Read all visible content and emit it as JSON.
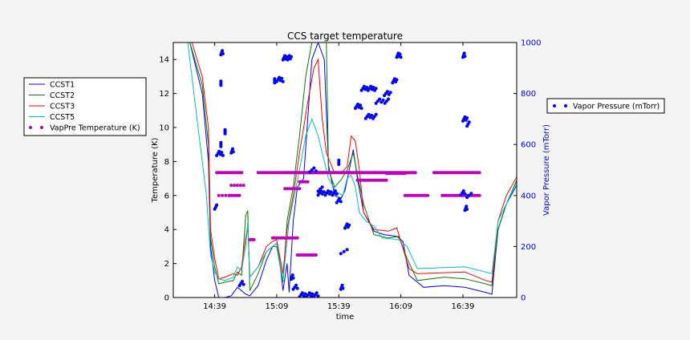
{
  "chart_data": {
    "type": "line",
    "title": "CCS target temperature",
    "xlabel": "time",
    "ylabel": "Temperature (K)",
    "y2label": "Vapor Pressure (mTorr)",
    "xlim": [
      "14:19",
      "17:05"
    ],
    "ylim": [
      0,
      15
    ],
    "y2lim": [
      0,
      1000
    ],
    "x_ticks": [
      "14:39",
      "15:09",
      "15:39",
      "16:09",
      "16:39"
    ],
    "y_ticks": [
      "0",
      "2",
      "4",
      "6",
      "8",
      "10",
      "12",
      "14"
    ],
    "y2_ticks": [
      "0",
      "200",
      "400",
      "600",
      "800",
      "1000"
    ],
    "grid": false,
    "legend_left_placement": "outside-left",
    "legend_right_placement": "outside-right",
    "colors": {
      "CCST1": "#0000ff",
      "CCST2": "#008000",
      "CCST3": "#ff0000",
      "CCST5": "#00bfbf",
      "VapPre Temperature (K)": "#bf00bf",
      "Vapor Pressure (mTorr)": "#0000ff",
      "right_axis": "#0000ff"
    },
    "series": [
      {
        "name": "CCST1",
        "axis": "left",
        "style": "line",
        "points": [
          [
            "14:19",
            15
          ],
          [
            "14:27",
            15
          ],
          [
            "14:33",
            12
          ],
          [
            "14:36",
            8
          ],
          [
            "14:37",
            3
          ],
          [
            "14:39",
            1
          ],
          [
            "14:41",
            0
          ],
          [
            "14:44",
            0
          ],
          [
            "14:47",
            0.1
          ],
          [
            "14:50",
            0.6
          ],
          [
            "14:52",
            0.4
          ],
          [
            "14:54",
            0.2
          ],
          [
            "14:56",
            0.1
          ],
          [
            "15:00",
            0.7
          ],
          [
            "15:04",
            2.2
          ],
          [
            "15:07",
            3.0
          ],
          [
            "15:09",
            3.2
          ],
          [
            "15:10",
            2.7
          ],
          [
            "15:12",
            0.4
          ],
          [
            "15:14",
            2.0
          ],
          [
            "15:15",
            0.3
          ],
          [
            "15:17",
            4.5
          ],
          [
            "15:19",
            6.5
          ],
          [
            "15:22",
            7.0
          ],
          [
            "15:26",
            14
          ],
          [
            "15:29",
            15
          ],
          [
            "15:32",
            14
          ],
          [
            "15:34",
            7.8
          ],
          [
            "15:37",
            6.0
          ],
          [
            "15:40",
            5.8
          ],
          [
            "15:42",
            6.3
          ],
          [
            "15:44",
            7.5
          ],
          [
            "15:46",
            8.7
          ],
          [
            "15:48",
            7.0
          ],
          [
            "15:51",
            5.0
          ],
          [
            "15:56",
            3.9
          ],
          [
            "16:01",
            3.7
          ],
          [
            "16:07",
            3.6
          ],
          [
            "16:10",
            3.3
          ],
          [
            "16:13",
            1.3
          ],
          [
            "16:20",
            0.6
          ],
          [
            "16:30",
            0.7
          ],
          [
            "16:40",
            0.6
          ],
          [
            "16:50",
            0.3
          ],
          [
            "16:53",
            0.2
          ],
          [
            "16:56",
            4.0
          ],
          [
            "17:00",
            5.5
          ],
          [
            "17:05",
            6.6
          ]
        ]
      },
      {
        "name": "CCST2",
        "axis": "left",
        "style": "line",
        "points": [
          [
            "14:19",
            15
          ],
          [
            "14:27",
            15
          ],
          [
            "14:33",
            12.5
          ],
          [
            "14:36",
            9
          ],
          [
            "14:37",
            3.5
          ],
          [
            "14:39",
            1.8
          ],
          [
            "14:41",
            0.8
          ],
          [
            "14:44",
            0.9
          ],
          [
            "14:48",
            1.0
          ],
          [
            "14:50",
            1.5
          ],
          [
            "14:52",
            1.3
          ],
          [
            "14:54",
            4.8
          ],
          [
            "14:55",
            5.1
          ],
          [
            "14:56",
            0.4
          ],
          [
            "15:00",
            1.4
          ],
          [
            "15:04",
            2.7
          ],
          [
            "15:07",
            3.0
          ],
          [
            "15:09",
            3.0
          ],
          [
            "15:12",
            0.9
          ],
          [
            "15:14",
            4.5
          ],
          [
            "15:17",
            6.5
          ],
          [
            "15:20",
            9.5
          ],
          [
            "15:23",
            13
          ],
          [
            "15:26",
            15
          ],
          [
            "15:33",
            15
          ],
          [
            "15:34",
            7.5
          ],
          [
            "15:37",
            6.5
          ],
          [
            "15:40",
            6.9
          ],
          [
            "15:43",
            7.5
          ],
          [
            "15:46",
            8.5
          ],
          [
            "15:48",
            7.2
          ],
          [
            "15:51",
            5.5
          ],
          [
            "15:56",
            3.7
          ],
          [
            "16:03",
            3.5
          ],
          [
            "16:08",
            3.6
          ],
          [
            "16:12",
            2.3
          ],
          [
            "16:17",
            1.0
          ],
          [
            "16:30",
            1.2
          ],
          [
            "16:40",
            1.1
          ],
          [
            "16:50",
            0.8
          ],
          [
            "16:53",
            0.7
          ],
          [
            "16:56",
            4.0
          ],
          [
            "17:00",
            5.5
          ],
          [
            "17:05",
            6.9
          ]
        ]
      },
      {
        "name": "CCST3",
        "axis": "left",
        "style": "line",
        "points": [
          [
            "14:19",
            15
          ],
          [
            "14:28",
            15
          ],
          [
            "14:33",
            13
          ],
          [
            "14:36",
            10
          ],
          [
            "14:37",
            4
          ],
          [
            "14:39",
            2.3
          ],
          [
            "14:41",
            1.1
          ],
          [
            "14:44",
            1.2
          ],
          [
            "14:48",
            1.4
          ],
          [
            "14:50",
            1.3
          ],
          [
            "14:52",
            1.8
          ],
          [
            "14:54",
            3.5
          ],
          [
            "14:55",
            4.2
          ],
          [
            "14:56",
            1.2
          ],
          [
            "15:00",
            1.8
          ],
          [
            "15:04",
            3.0
          ],
          [
            "15:07",
            3.3
          ],
          [
            "15:09",
            3.4
          ],
          [
            "15:12",
            1.4
          ],
          [
            "15:14",
            4.0
          ],
          [
            "15:17",
            6.0
          ],
          [
            "15:20",
            8.5
          ],
          [
            "15:24",
            11.5
          ],
          [
            "15:27",
            13.5
          ],
          [
            "15:29",
            14
          ],
          [
            "15:31",
            10.5
          ],
          [
            "15:33",
            8.5
          ],
          [
            "15:37",
            7.3
          ],
          [
            "15:40",
            7.3
          ],
          [
            "15:43",
            7.7
          ],
          [
            "15:45",
            9.5
          ],
          [
            "15:47",
            9.2
          ],
          [
            "15:49",
            7.5
          ],
          [
            "15:51",
            5.0
          ],
          [
            "15:56",
            4.0
          ],
          [
            "16:03",
            3.9
          ],
          [
            "16:07",
            4.1
          ],
          [
            "16:13",
            1.7
          ],
          [
            "16:17",
            1.4
          ],
          [
            "16:40",
            1.5
          ],
          [
            "16:50",
            1.0
          ],
          [
            "16:53",
            0.9
          ],
          [
            "16:56",
            4.5
          ],
          [
            "17:00",
            6.0
          ],
          [
            "17:05",
            7.1
          ]
        ]
      },
      {
        "name": "CCST5",
        "axis": "left",
        "style": "line",
        "points": [
          [
            "14:19",
            15
          ],
          [
            "14:26",
            15
          ],
          [
            "14:31",
            10
          ],
          [
            "14:35",
            6
          ],
          [
            "14:37",
            2.5
          ],
          [
            "14:39",
            1.5
          ],
          [
            "14:41",
            1.1
          ],
          [
            "14:44",
            1.0
          ],
          [
            "14:48",
            1.2
          ],
          [
            "14:50",
            1.8
          ],
          [
            "14:52",
            1.6
          ],
          [
            "14:54",
            3.0
          ],
          [
            "14:55",
            4.4
          ],
          [
            "14:56",
            1.2
          ],
          [
            "15:00",
            1.8
          ],
          [
            "15:04",
            2.7
          ],
          [
            "15:07",
            3.0
          ],
          [
            "15:09",
            3.2
          ],
          [
            "15:12",
            1.0
          ],
          [
            "15:15",
            4.5
          ],
          [
            "15:20",
            7.5
          ],
          [
            "15:23",
            9.5
          ],
          [
            "15:26",
            10.5
          ],
          [
            "15:29",
            9.5
          ],
          [
            "15:34",
            7.0
          ],
          [
            "15:38",
            6.2
          ],
          [
            "15:41",
            6.0
          ],
          [
            "15:43",
            7.0
          ],
          [
            "15:45",
            7.2
          ],
          [
            "15:47",
            6.5
          ],
          [
            "15:49",
            5.0
          ],
          [
            "15:52",
            4.5
          ],
          [
            "15:56",
            4.2
          ],
          [
            "16:00",
            3.5
          ],
          [
            "16:08",
            3.4
          ],
          [
            "16:12",
            3.0
          ],
          [
            "16:17",
            1.7
          ],
          [
            "16:40",
            1.8
          ],
          [
            "16:50",
            1.5
          ],
          [
            "16:53",
            1.4
          ],
          [
            "16:56",
            4.5
          ],
          [
            "17:00",
            5.5
          ],
          [
            "17:05",
            6.8
          ]
        ]
      },
      {
        "name": "VapPre Temperature (K)",
        "axis": "left",
        "style": "dots",
        "segments": [
          {
            "t0": "14:40",
            "t1": "14:52",
            "y": 7.35,
            "n": 18
          },
          {
            "t0": "14:41",
            "t1": "14:46",
            "y": 6.0,
            "n": 4
          },
          {
            "t0": "14:46",
            "t1": "14:51",
            "y": 6.0,
            "n": 7
          },
          {
            "t0": "14:47",
            "t1": "14:53",
            "y": 6.6,
            "n": 5
          },
          {
            "t0": "15:00",
            "t1": "15:09",
            "y": 7.35,
            "n": 10
          },
          {
            "t0": "15:10",
            "t1": "15:32",
            "y": 7.35,
            "n": 34
          },
          {
            "t0": "15:13",
            "t1": "15:20",
            "y": 6.4,
            "n": 7
          },
          {
            "t0": "15:20",
            "t1": "15:24",
            "y": 6.8,
            "n": 5
          },
          {
            "t0": "15:24",
            "t1": "15:40",
            "y": 7.35,
            "n": 22
          },
          {
            "t0": "15:40",
            "t1": "16:16",
            "y": 7.35,
            "n": 55
          },
          {
            "t0": "15:48",
            "t1": "16:02",
            "y": 6.9,
            "n": 18
          },
          {
            "t0": "16:02",
            "t1": "16:11",
            "y": 7.3,
            "n": 12
          },
          {
            "t0": "16:11",
            "t1": "16:22",
            "y": 6.0,
            "n": 15
          },
          {
            "t0": "16:25",
            "t1": "16:47",
            "y": 7.35,
            "n": 30
          },
          {
            "t0": "16:29",
            "t1": "16:47",
            "y": 6.0,
            "n": 24
          },
          {
            "t0": "15:07",
            "t1": "15:19",
            "y": 3.5,
            "n": 14
          },
          {
            "t0": "15:19",
            "t1": "15:28",
            "y": 2.5,
            "n": 12
          },
          {
            "t0": "14:56",
            "t1": "14:58",
            "y": 3.4,
            "n": 4
          }
        ]
      },
      {
        "name": "Vapor Pressure (mTorr)",
        "axis": "right",
        "style": "dots",
        "segments": [
          {
            "t0": "14:39",
            "t1": "14:40",
            "y": 355,
            "n": 3
          },
          {
            "t0": "14:40",
            "t1": "14:43",
            "y": 565,
            "n": 6
          },
          {
            "t0": "14:42",
            "t1": "14:42",
            "y": 600,
            "n": 3
          },
          {
            "t0": "14:42",
            "t1": "14:42",
            "y": 840,
            "n": 3
          },
          {
            "t0": "14:42",
            "t1": "14:43",
            "y": 960,
            "n": 4
          },
          {
            "t0": "14:44",
            "t1": "14:44",
            "y": 650,
            "n": 5
          },
          {
            "t0": "14:47",
            "t1": "14:48",
            "y": 575,
            "n": 4
          },
          {
            "t0": "14:51",
            "t1": "14:53",
            "y": 55,
            "n": 4
          },
          {
            "t0": "15:09",
            "t1": "15:12",
            "y": 855,
            "n": 6
          },
          {
            "t0": "15:12",
            "t1": "15:16",
            "y": 940,
            "n": 10
          },
          {
            "t0": "15:08",
            "t1": "15:08",
            "y": 850,
            "n": 3
          },
          {
            "t0": "15:16",
            "t1": "15:17",
            "y": 80,
            "n": 4
          },
          {
            "t0": "15:17",
            "t1": "15:19",
            "y": 40,
            "n": 4
          },
          {
            "t0": "15:20",
            "t1": "15:29",
            "y": 10,
            "n": 14
          },
          {
            "t0": "15:25",
            "t1": "15:28",
            "y": 500,
            "n": 4
          },
          {
            "t0": "15:29",
            "t1": "15:31",
            "y": 425,
            "n": 3
          },
          {
            "t0": "15:29",
            "t1": "15:38",
            "y": 410,
            "n": 14
          },
          {
            "t0": "15:38",
            "t1": "15:40",
            "y": 380,
            "n": 4
          },
          {
            "t0": "15:42",
            "t1": "15:44",
            "y": 280,
            "n": 5
          },
          {
            "t0": "15:40",
            "t1": "15:41",
            "y": 40,
            "n": 4
          },
          {
            "t0": "15:40",
            "t1": "15:43",
            "y": 180,
            "n": 3
          },
          {
            "t0": "15:39",
            "t1": "15:39",
            "y": 530,
            "n": 3
          },
          {
            "t0": "15:47",
            "t1": "15:50",
            "y": 750,
            "n": 6
          },
          {
            "t0": "15:50",
            "t1": "15:57",
            "y": 820,
            "n": 12
          },
          {
            "t0": "15:52",
            "t1": "15:57",
            "y": 710,
            "n": 8
          },
          {
            "t0": "15:57",
            "t1": "16:03",
            "y": 770,
            "n": 8
          },
          {
            "t0": "16:01",
            "t1": "16:04",
            "y": 800,
            "n": 5
          },
          {
            "t0": "16:05",
            "t1": "16:07",
            "y": 850,
            "n": 5
          },
          {
            "t0": "16:07",
            "t1": "16:09",
            "y": 950,
            "n": 6
          },
          {
            "t0": "16:38",
            "t1": "16:40",
            "y": 410,
            "n": 4
          },
          {
            "t0": "16:40",
            "t1": "16:41",
            "y": 350,
            "n": 4
          },
          {
            "t0": "16:39",
            "t1": "16:40",
            "y": 950,
            "n": 4
          },
          {
            "t0": "16:39",
            "t1": "16:41",
            "y": 700,
            "n": 5
          },
          {
            "t0": "16:41",
            "t1": "16:42",
            "y": 680,
            "n": 3
          },
          {
            "t0": "16:41",
            "t1": "16:43",
            "y": 400,
            "n": 3
          }
        ]
      }
    ]
  }
}
